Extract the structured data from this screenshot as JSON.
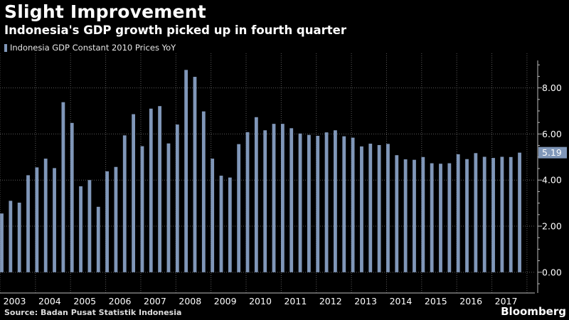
{
  "title": "Slight Improvement",
  "subtitle": "Indonesia's GDP growth picked up in fourth quarter",
  "source": "Source: Badan Pusat Statistik Indonesia",
  "brand": "Bloomberg",
  "colors": {
    "bar": "#8097b9",
    "grid": "#5a5a5a",
    "background": "#000000",
    "text": "#ffffff"
  },
  "chart_data": {
    "type": "bar",
    "legend": [
      "Indonesia GDP Constant 2010 Prices YoY"
    ],
    "legend_position": "top-left",
    "grid": true,
    "ylim": [
      -0.9,
      9.5
    ],
    "y_ticks": [
      0,
      2,
      4,
      6,
      8
    ],
    "y_tick_labels": [
      "0.00",
      "2.00",
      "4.00",
      "6.00",
      "8.00"
    ],
    "x_tick_labels": [
      "2003",
      "2004",
      "2005",
      "2006",
      "2007",
      "2008",
      "2009",
      "2010",
      "2011",
      "2012",
      "2013",
      "2014",
      "2015",
      "2016",
      "2017"
    ],
    "last_value_label": "5.19",
    "categories": [
      "2003 Q1",
      "2003 Q2",
      "2003 Q3",
      "2003 Q4",
      "2004 Q1",
      "2004 Q2",
      "2004 Q3",
      "2004 Q4",
      "2005 Q1",
      "2005 Q2",
      "2005 Q3",
      "2005 Q4",
      "2006 Q1",
      "2006 Q2",
      "2006 Q3",
      "2006 Q4",
      "2007 Q1",
      "2007 Q2",
      "2007 Q3",
      "2007 Q4",
      "2008 Q1",
      "2008 Q2",
      "2008 Q3",
      "2008 Q4",
      "2009 Q1",
      "2009 Q2",
      "2009 Q3",
      "2009 Q4",
      "2010 Q1",
      "2010 Q2",
      "2010 Q3",
      "2010 Q4",
      "2011 Q1",
      "2011 Q2",
      "2011 Q3",
      "2011 Q4",
      "2012 Q1",
      "2012 Q2",
      "2012 Q3",
      "2012 Q4",
      "2013 Q1",
      "2013 Q2",
      "2013 Q3",
      "2013 Q4",
      "2014 Q1",
      "2014 Q2",
      "2014 Q3",
      "2014 Q4",
      "2015 Q1",
      "2015 Q2",
      "2015 Q3",
      "2015 Q4",
      "2016 Q1",
      "2016 Q2",
      "2016 Q3",
      "2016 Q4",
      "2017 Q1",
      "2017 Q2",
      "2017 Q3",
      "2017 Q4"
    ],
    "series": [
      {
        "name": "Indonesia GDP Constant 2010 Prices YoY",
        "values": [
          2.55,
          3.1,
          3.02,
          4.21,
          4.55,
          4.93,
          4.52,
          7.38,
          6.48,
          3.73,
          4.0,
          2.84,
          4.38,
          4.57,
          5.94,
          6.86,
          5.47,
          7.1,
          7.21,
          5.59,
          6.41,
          8.78,
          8.48,
          6.98,
          4.93,
          4.19,
          4.11,
          5.56,
          6.08,
          6.73,
          6.16,
          6.44,
          6.44,
          6.25,
          6.02,
          5.96,
          5.92,
          6.07,
          6.16,
          5.9,
          5.84,
          5.46,
          5.58,
          5.52,
          5.57,
          5.08,
          4.9,
          4.88,
          5.0,
          4.73,
          4.71,
          4.73,
          5.12,
          4.91,
          5.17,
          5.01,
          4.96,
          5.01,
          5.0,
          5.19
        ]
      }
    ]
  }
}
